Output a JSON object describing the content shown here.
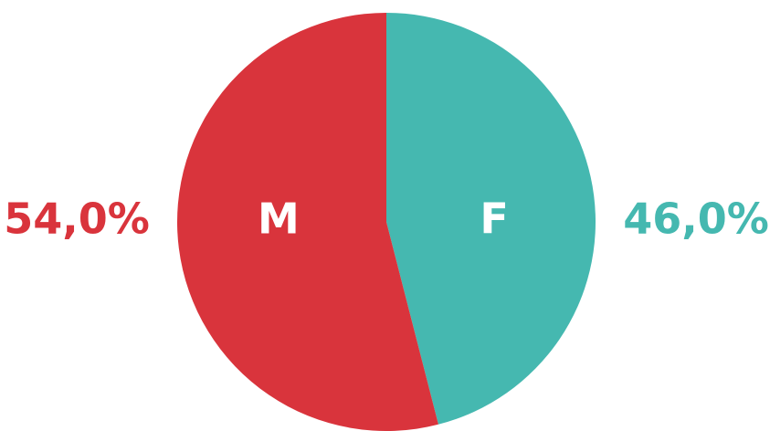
{
  "chart_data": {
    "type": "pie",
    "categories": [
      "F",
      "M"
    ],
    "values": [
      46,
      54
    ],
    "value_labels": [
      "46,0%",
      "54,0%"
    ],
    "colors": [
      "#45b8b0",
      "#d9343c"
    ]
  }
}
